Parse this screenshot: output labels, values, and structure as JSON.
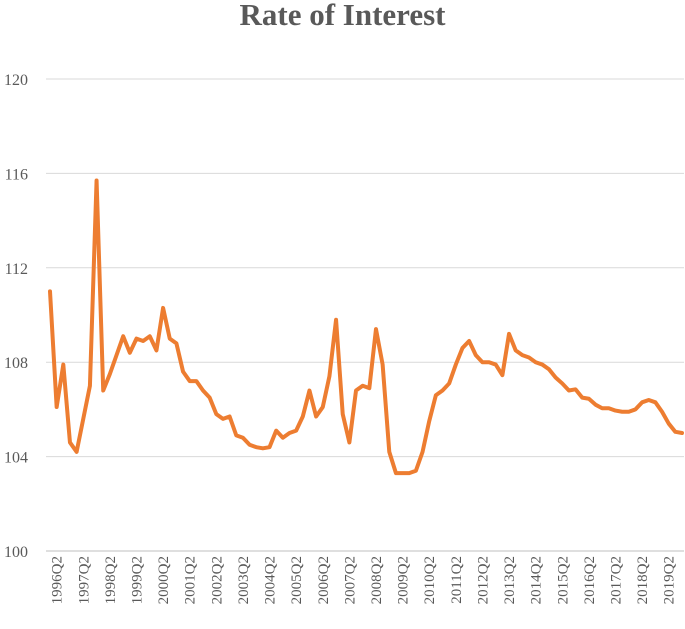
{
  "chart_data": {
    "type": "line",
    "title": "Rate of Interest",
    "xlabel": "",
    "ylabel": "",
    "ylim": [
      100,
      120
    ],
    "yticks": [
      100,
      104,
      108,
      112,
      116,
      120
    ],
    "grid": true,
    "legend": "none",
    "x_tick_labels": [
      "1996Q2",
      "1997Q2",
      "1998Q2",
      "1999Q2",
      "2000Q2",
      "2001Q2",
      "2002Q2",
      "2003Q2",
      "2004Q2",
      "2005Q2",
      "2006Q2",
      "2007Q2",
      "2008Q2",
      "2009Q2",
      "2010Q2",
      "2011Q2",
      "2012Q2",
      "2013Q2",
      "2014Q2",
      "2015Q2",
      "2016Q2",
      "2017Q2",
      "2018Q2",
      "2019Q2"
    ],
    "series": [
      {
        "color": "#ED7D31",
        "x_start": "1996Q1",
        "x_end": "2019Q4",
        "frequency": "quarterly",
        "values": [
          111.0,
          106.1,
          107.9,
          104.6,
          104.2,
          105.6,
          107.0,
          115.7,
          106.8,
          107.5,
          108.3,
          109.1,
          108.4,
          109.0,
          108.9,
          109.1,
          108.5,
          110.3,
          109.0,
          108.8,
          107.6,
          107.2,
          107.2,
          106.8,
          106.5,
          105.8,
          105.6,
          105.7,
          104.9,
          104.8,
          104.5,
          104.4,
          104.35,
          104.4,
          105.1,
          104.8,
          105.0,
          105.1,
          105.7,
          106.8,
          105.7,
          106.1,
          107.4,
          109.8,
          105.8,
          104.6,
          106.8,
          107.0,
          106.9,
          109.4,
          107.9,
          104.2,
          103.3,
          103.3,
          103.3,
          103.4,
          104.2,
          105.5,
          106.6,
          106.8,
          107.1,
          107.9,
          108.6,
          108.9,
          108.3,
          108.0,
          108.0,
          107.9,
          107.45,
          109.2,
          108.5,
          108.3,
          108.2,
          108.0,
          107.9,
          107.7,
          107.35,
          107.1,
          106.8,
          106.85,
          106.5,
          106.45,
          106.2,
          106.05,
          106.05,
          105.95,
          105.9,
          105.9,
          106.0,
          106.3,
          106.4,
          106.3,
          105.9,
          105.4,
          105.05,
          105.0
        ]
      }
    ]
  }
}
